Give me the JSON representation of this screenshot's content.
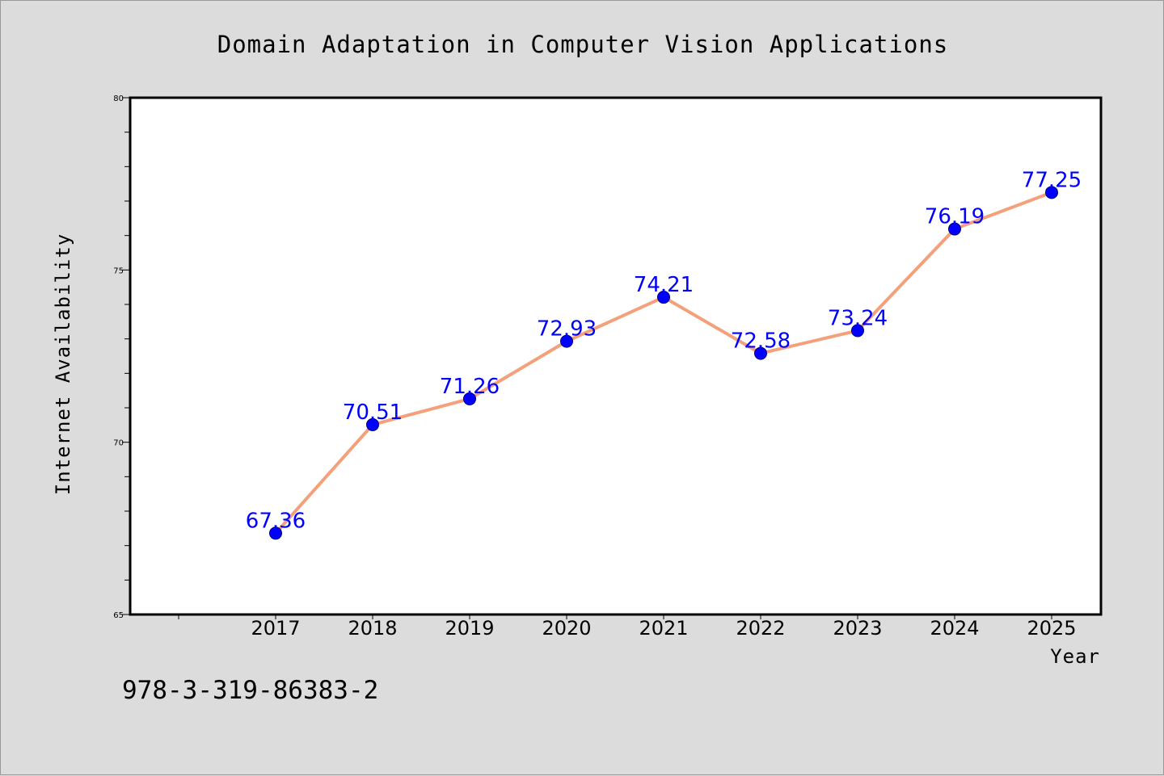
{
  "chart_data": {
    "type": "line",
    "title": "Domain Adaptation in Computer Vision Applications",
    "xlabel": "Year",
    "ylabel": "Internet Availability",
    "categories": [
      "2017",
      "2018",
      "2019",
      "2020",
      "2021",
      "2022",
      "2023",
      "2024",
      "2025"
    ],
    "values": [
      67.36,
      70.51,
      71.26,
      72.93,
      74.21,
      72.58,
      73.24,
      76.19,
      77.25
    ],
    "data_labels": [
      "67.36",
      "70.51",
      "71.26",
      "72.93",
      "74.21",
      "72.58",
      "73.24",
      "76.19",
      "77.25"
    ],
    "ylim": [
      65,
      80
    ],
    "yticks": [
      "65",
      "70",
      "75",
      "80"
    ],
    "grid": false,
    "legend": "none",
    "line_color": "#f4a07a",
    "marker_color": "#0000ff",
    "label_color": "#0000ff"
  },
  "footnote": "978-3-319-86383-2"
}
